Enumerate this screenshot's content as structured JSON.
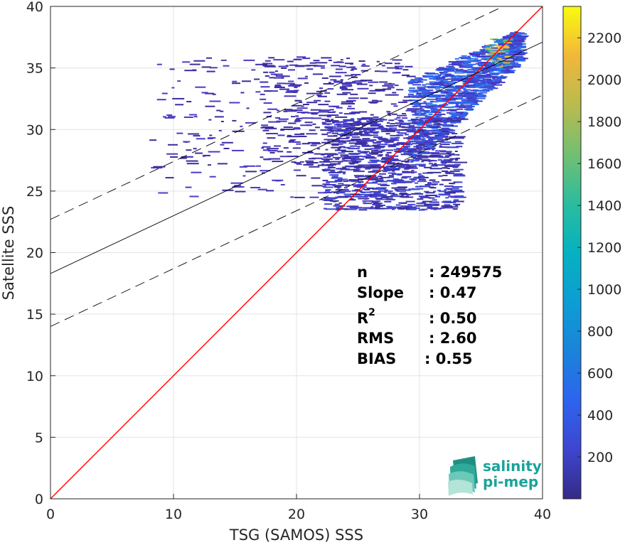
{
  "chart_data": {
    "type": "heatmap",
    "xlabel": "TSG (SAMOS) SSS",
    "ylabel": "Satellite SSS",
    "xlim": [
      0,
      40
    ],
    "ylim": [
      0,
      40
    ],
    "xticks": [
      "0",
      "10",
      "20",
      "30",
      "40"
    ],
    "yticks": [
      "0",
      "5",
      "10",
      "15",
      "20",
      "25",
      "30",
      "35",
      "40"
    ],
    "grid": true,
    "reference_line": {
      "slope": 1,
      "intercept": 0,
      "color": "#ff0000"
    },
    "regression_line": {
      "slope": 0.47,
      "intercept": 18.3,
      "color": "#000000"
    },
    "regression_bounds": [
      {
        "slope": 0.47,
        "intercept": 22.7
      },
      {
        "slope": 0.47,
        "intercept": 14.0
      }
    ],
    "density_clusters": [
      {
        "x_range": [
          29,
          38
        ],
        "y_range": [
          27,
          37
        ],
        "level": "high"
      },
      {
        "x_range": [
          22,
          33
        ],
        "y_range": [
          23.5,
          31
        ],
        "level": "medium"
      },
      {
        "x_range": [
          17,
          29
        ],
        "y_range": [
          27,
          36
        ],
        "level": "low"
      },
      {
        "x_range": [
          8,
          22
        ],
        "y_range": [
          24.5,
          36
        ],
        "level": "sparse"
      },
      {
        "x_range": [
          35.3,
          37
        ],
        "y_range": [
          35,
          37.5
        ],
        "level": "peak"
      }
    ],
    "colorbar": {
      "min": 0,
      "max": 2350,
      "ticks": [
        "200",
        "400",
        "600",
        "800",
        "1000",
        "1200",
        "1400",
        "1600",
        "1800",
        "2000",
        "2200"
      ],
      "colormap": "parula"
    },
    "stats": {
      "n_label": "n",
      "n_value": ": 249575",
      "slope_label": "Slope",
      "slope_value": ": 0.47",
      "r2_label": "R",
      "r2_sup": "2",
      "r2_value": ": 0.50",
      "rms_label": "RMS",
      "rms_value": ": 2.60",
      "bias_label": "BIAS",
      "bias_value": ": 0.55"
    }
  },
  "logo": {
    "line1": "salinity",
    "line2": "pi-mep"
  }
}
